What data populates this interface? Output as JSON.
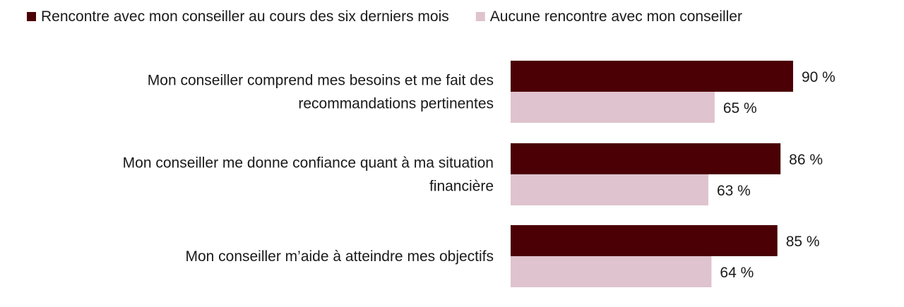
{
  "chart_data": {
    "type": "bar",
    "orientation": "horizontal",
    "categories": [
      [
        "Mon conseiller comprend mes besoins et me fait des",
        "recommandations pertinentes"
      ],
      [
        "Mon conseiller me donne confiance quant à ma situation",
        "financière"
      ],
      [
        "Mon conseiller m’aide à atteindre mes objectifs"
      ]
    ],
    "series": [
      {
        "name": "Rencontre avec mon conseiller au cours des six derniers mois",
        "color": "#4a0004",
        "values": [
          90,
          86,
          85
        ]
      },
      {
        "name": "Aucune rencontre avec mon conseiller",
        "color": "#dfc3ce",
        "values": [
          65,
          63,
          64
        ]
      }
    ],
    "value_suffix": " %",
    "xlim": [
      0,
      100
    ],
    "legend_position": "top",
    "grid": false
  }
}
